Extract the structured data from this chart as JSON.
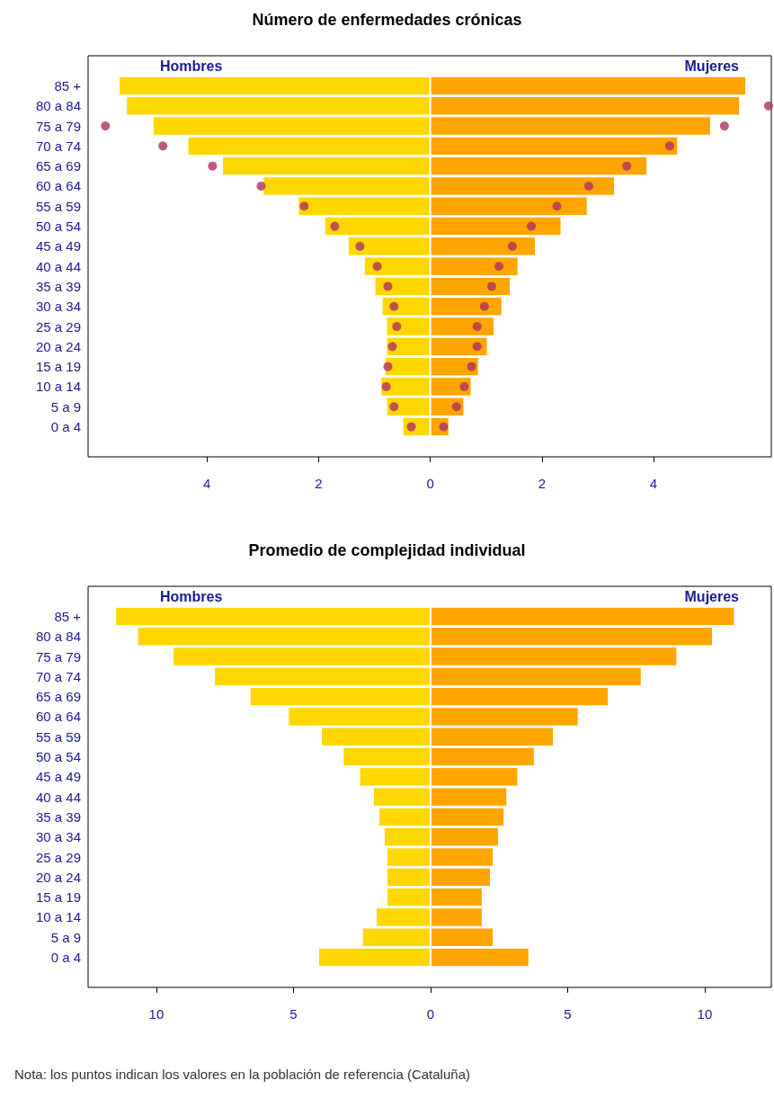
{
  "chart_data": [
    {
      "type": "bar",
      "orientation": "horizontal",
      "stacked": true,
      "title": "Número de enfermedades crónicas",
      "categories": [
        "85 +",
        "80 a 84",
        "75 a 79",
        "70 a 74",
        "65 a 69",
        "60 a 64",
        "55 a 59",
        "50 a 54",
        "45 a 49",
        "40 a 44",
        "35 a 39",
        "30 a 34",
        "25 a 29",
        "20 a 24",
        "15 a 19",
        "10 a 14",
        "5 a 9",
        "0 a 4"
      ],
      "xlim": [
        -6.13,
        6.11
      ],
      "xticks": [
        {
          "value": -4,
          "label": "4"
        },
        {
          "value": -2,
          "label": "2"
        },
        0,
        2,
        4
      ],
      "series": [
        {
          "name": "Hombres",
          "color": "#ffd700",
          "values": [
            -5.58,
            -5.45,
            -4.97,
            -4.35,
            -3.73,
            -3.0,
            -2.37,
            -1.9,
            -1.48,
            -1.19,
            -1.0,
            -0.87,
            -0.79,
            -0.79,
            -0.82,
            -0.89,
            -0.79,
            -0.5
          ]
        },
        {
          "name": "Mujeres",
          "color": "#ffa500",
          "values": [
            5.66,
            5.55,
            5.03,
            4.44,
            3.89,
            3.31,
            2.82,
            2.35,
            1.89,
            1.58,
            1.44,
            1.29,
            1.15,
            1.03,
            0.87,
            0.74,
            0.61,
            0.34
          ]
        },
        {
          "type": "scatter",
          "marker": "circle",
          "color": "#b03060",
          "values": [
            null,
            null,
            -5.82,
            -4.79,
            -3.9,
            -3.03,
            -2.26,
            -1.71,
            -1.26,
            -0.95,
            -0.76,
            -0.65,
            -0.6,
            -0.68,
            -0.76,
            -0.79,
            -0.65,
            -0.34
          ]
        },
        {
          "type": "scatter",
          "marker": "circle",
          "color": "#b03060",
          "values": [
            null,
            6.06,
            5.27,
            4.29,
            3.52,
            2.84,
            2.27,
            1.81,
            1.47,
            1.23,
            1.1,
            0.97,
            0.84,
            0.84,
            0.74,
            0.61,
            0.47,
            0.24
          ]
        }
      ]
    },
    {
      "type": "bar",
      "orientation": "horizontal",
      "stacked": true,
      "title": "Promedio de complejidad individual",
      "categories": [
        "85 +",
        "80 a 84",
        "75 a 79",
        "70 a 74",
        "65 a 69",
        "60 a 64",
        "55 a 59",
        "50 a 54",
        "45 a 49",
        "40 a 44",
        "35 a 39",
        "30 a 34",
        "25 a 29",
        "20 a 24",
        "15 a 19",
        "10 a 14",
        "5 a 9",
        "0 a 4"
      ],
      "xlim": [
        -12.49,
        12.43
      ],
      "xticks": [
        {
          "value": -10,
          "label": "10"
        },
        {
          "value": -5,
          "label": "5"
        },
        0,
        5,
        10
      ],
      "series": [
        {
          "name": "Hombres",
          "color": "#ffd700",
          "values": [
            -11.5,
            -10.7,
            -9.4,
            -7.9,
            -6.6,
            -5.2,
            -4.0,
            -3.2,
            -2.6,
            -2.1,
            -1.9,
            -1.7,
            -1.6,
            -1.6,
            -1.6,
            -2.0,
            -2.5,
            -4.1
          ]
        },
        {
          "name": "Mujeres",
          "color": "#ffa500",
          "values": [
            11.1,
            10.3,
            9.0,
            7.7,
            6.5,
            5.4,
            4.5,
            3.8,
            3.2,
            2.8,
            2.7,
            2.5,
            2.3,
            2.2,
            1.9,
            1.9,
            2.3,
            3.6
          ]
        }
      ],
      "annotations": [
        "Nota: los puntos indican los valores en la población de referencia (Cataluña)"
      ]
    }
  ]
}
